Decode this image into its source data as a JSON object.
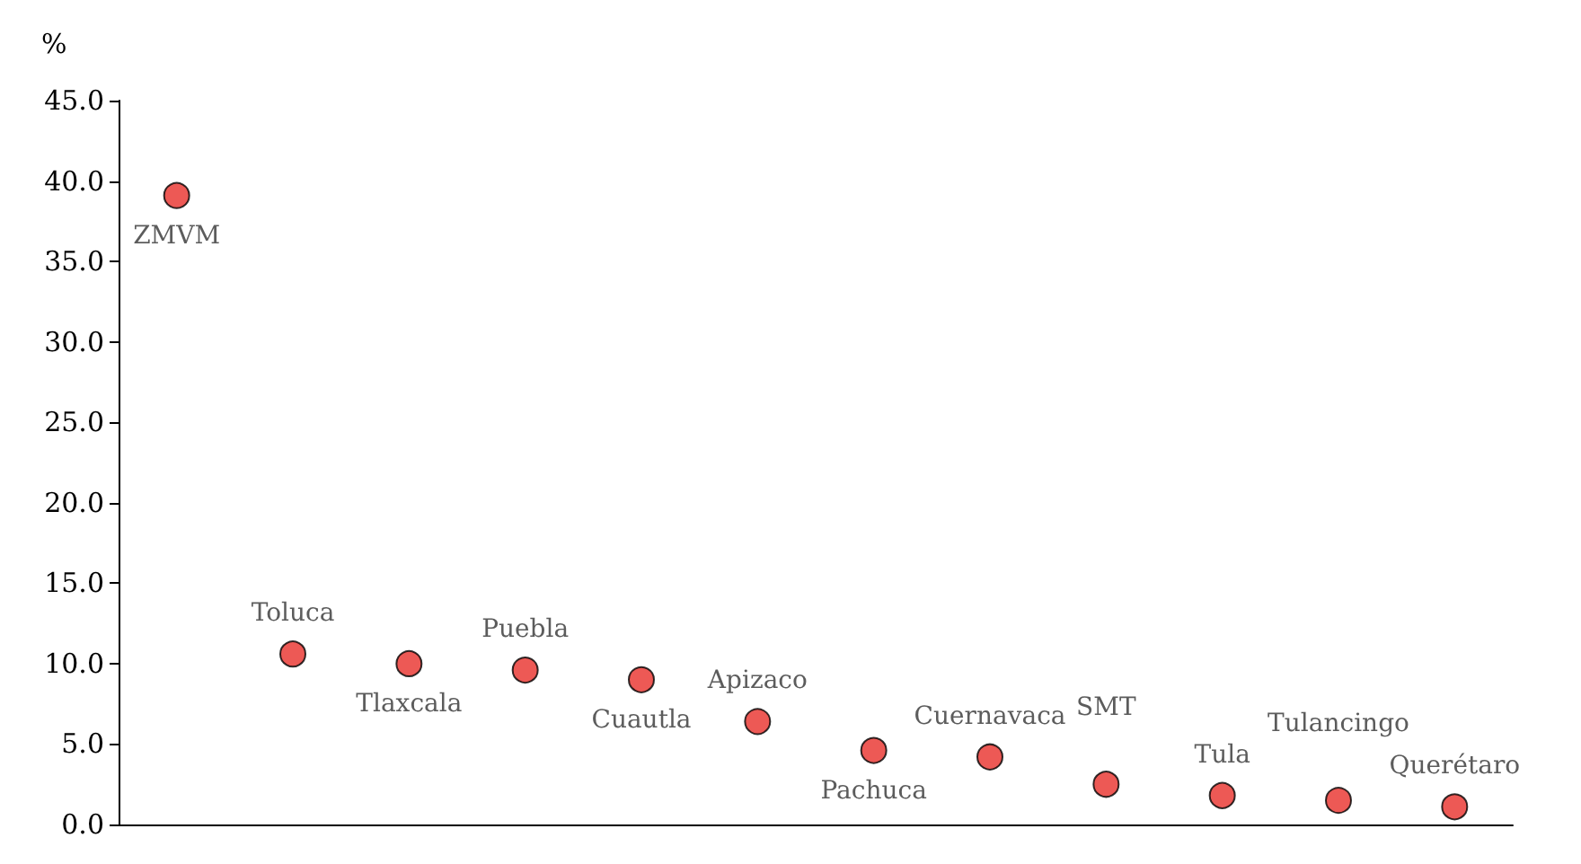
{
  "chart_data": {
    "type": "scatter",
    "ylabel": "%",
    "categories": [
      "ZMVM",
      "Toluca",
      "Tlaxcala",
      "Puebla",
      "Cuautla",
      "Apizaco",
      "Pachuca",
      "Cuernavaca",
      "SMT",
      "Tula",
      "Tulancingo",
      "Querétaro"
    ],
    "values": [
      39.1,
      10.6,
      10.0,
      9.6,
      9.0,
      6.4,
      4.6,
      4.2,
      2.5,
      1.8,
      1.5,
      1.1
    ],
    "color": "#e8302a",
    "marker": "circle",
    "ylim": [
      0,
      45
    ],
    "yticks": [
      {
        "value": 0,
        "label": "0.0"
      },
      {
        "value": 5,
        "label": "5.0"
      },
      {
        "value": 10,
        "label": "10.0"
      },
      {
        "value": 15,
        "label": "15.0"
      },
      {
        "value": 20,
        "label": "20.0"
      },
      {
        "value": 25,
        "label": "25.0"
      },
      {
        "value": 30,
        "label": "30.0"
      },
      {
        "value": 35,
        "label": "35.0"
      },
      {
        "value": 40,
        "label": "40.0"
      },
      {
        "value": 45,
        "label": "45.0"
      }
    ],
    "tick_labels": "y",
    "grid": false
  }
}
